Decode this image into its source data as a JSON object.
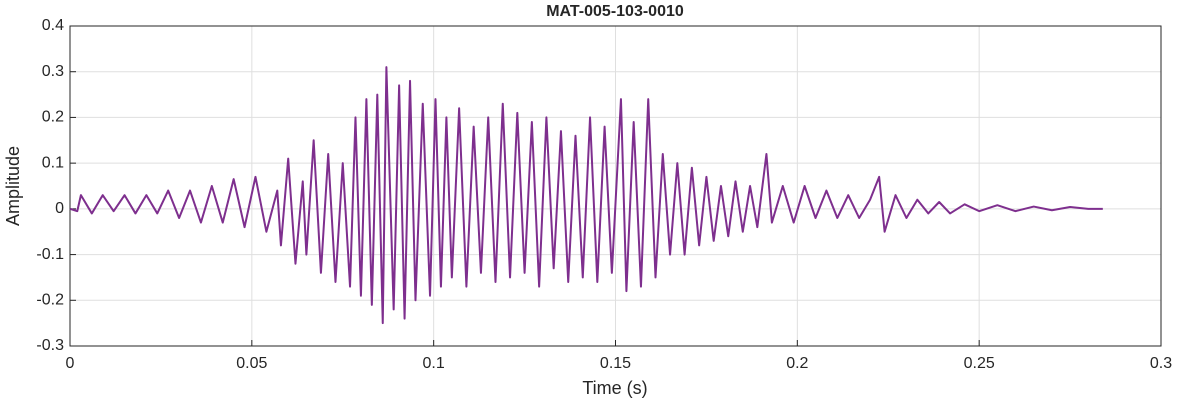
{
  "chart_data": {
    "type": "line",
    "title": "MAT-005-103-0010",
    "xlabel": "Time (s)",
    "ylabel": "Amplitude",
    "xlim": [
      0,
      0.3
    ],
    "ylim": [
      -0.3,
      0.4
    ],
    "xticks": [
      0,
      0.05,
      0.1,
      0.15,
      0.2,
      0.25,
      0.3
    ],
    "yticks": [
      -0.3,
      -0.2,
      -0.1,
      0,
      0.1,
      0.2,
      0.3,
      0.4
    ],
    "grid": true,
    "x": [
      0,
      0.002,
      0.003,
      0.006,
      0.009,
      0.012,
      0.015,
      0.018,
      0.021,
      0.024,
      0.027,
      0.03,
      0.033,
      0.036,
      0.039,
      0.042,
      0.045,
      0.048,
      0.051,
      0.054,
      0.057,
      0.058,
      0.06,
      0.062,
      0.064,
      0.065,
      0.067,
      0.069,
      0.071,
      0.073,
      0.075,
      0.077,
      0.0785,
      0.08,
      0.0815,
      0.083,
      0.0845,
      0.086,
      0.087,
      0.089,
      0.0905,
      0.092,
      0.0935,
      0.095,
      0.097,
      0.099,
      0.1005,
      0.102,
      0.1035,
      0.105,
      0.107,
      0.109,
      0.111,
      0.113,
      0.115,
      0.117,
      0.119,
      0.121,
      0.123,
      0.125,
      0.127,
      0.129,
      0.131,
      0.133,
      0.135,
      0.137,
      0.139,
      0.141,
      0.143,
      0.145,
      0.147,
      0.149,
      0.1515,
      0.153,
      0.155,
      0.157,
      0.159,
      0.161,
      0.163,
      0.165,
      0.167,
      0.169,
      0.171,
      0.173,
      0.175,
      0.177,
      0.179,
      0.181,
      0.183,
      0.185,
      0.187,
      0.189,
      0.1915,
      0.193,
      0.196,
      0.199,
      0.202,
      0.205,
      0.208,
      0.211,
      0.214,
      0.217,
      0.22,
      0.2225,
      0.224,
      0.227,
      0.23,
      0.233,
      0.236,
      0.239,
      0.242,
      0.246,
      0.25,
      0.255,
      0.26,
      0.265,
      0.27,
      0.275,
      0.28,
      0.284
    ],
    "series": [
      {
        "name": "Amplitude",
        "color": "#7e2f8e",
        "values": [
          0,
          -0.005,
          0.03,
          -0.01,
          0.03,
          -0.005,
          0.03,
          -0.01,
          0.03,
          -0.01,
          0.04,
          -0.02,
          0.04,
          -0.03,
          0.05,
          -0.03,
          0.065,
          -0.04,
          0.07,
          -0.05,
          0.04,
          -0.08,
          0.11,
          -0.12,
          0.06,
          -0.1,
          0.15,
          -0.14,
          0.12,
          -0.16,
          0.1,
          -0.17,
          0.2,
          -0.19,
          0.24,
          -0.21,
          0.25,
          -0.25,
          0.31,
          -0.22,
          0.27,
          -0.24,
          0.28,
          -0.2,
          0.23,
          -0.19,
          0.24,
          -0.17,
          0.2,
          -0.15,
          0.22,
          -0.17,
          0.18,
          -0.14,
          0.2,
          -0.16,
          0.23,
          -0.15,
          0.21,
          -0.14,
          0.19,
          -0.17,
          0.2,
          -0.13,
          0.17,
          -0.16,
          0.16,
          -0.15,
          0.2,
          -0.16,
          0.18,
          -0.14,
          0.24,
          -0.18,
          0.19,
          -0.17,
          0.24,
          -0.15,
          0.12,
          -0.1,
          0.1,
          -0.1,
          0.09,
          -0.08,
          0.07,
          -0.07,
          0.05,
          -0.06,
          0.06,
          -0.05,
          0.05,
          -0.04,
          0.12,
          -0.03,
          0.05,
          -0.03,
          0.05,
          -0.02,
          0.04,
          -0.02,
          0.03,
          -0.02,
          0.02,
          0.07,
          -0.05,
          0.03,
          -0.02,
          0.02,
          -0.01,
          0.015,
          -0.01,
          0.01,
          -0.005,
          0.008,
          -0.005,
          0.005,
          -0.003,
          0.004,
          0,
          0
        ]
      }
    ]
  }
}
